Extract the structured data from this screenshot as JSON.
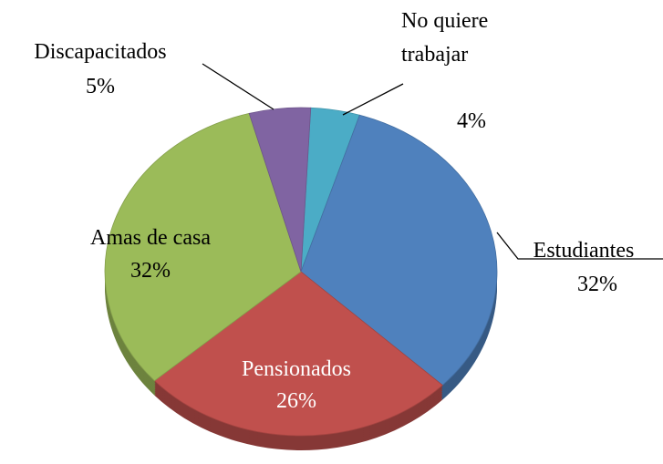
{
  "chart_data": {
    "type": "pie",
    "categories": [
      "No quiere trabajar",
      "Estudiantes",
      "Pensionados",
      "Amas de casa",
      "Discapacitados"
    ],
    "values": [
      4,
      32,
      26,
      32,
      5
    ],
    "value_labels": [
      "4%",
      "32%",
      "26%",
      "32%",
      "5%"
    ],
    "colors": [
      "#4bacc6",
      "#4f81bd",
      "#c0504d",
      "#9bbb59",
      "#8064a2"
    ]
  }
}
